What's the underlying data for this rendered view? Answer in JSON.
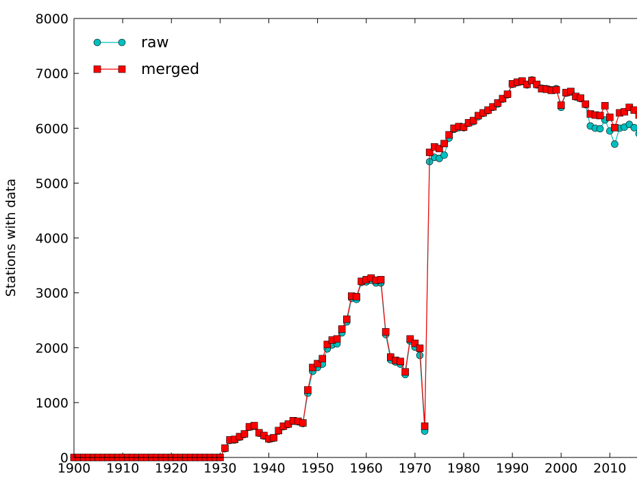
{
  "chart_data": {
    "type": "line",
    "y_label": "Stations with data",
    "x": [
      1900,
      1901,
      1902,
      1903,
      1904,
      1905,
      1906,
      1907,
      1908,
      1909,
      1910,
      1911,
      1912,
      1913,
      1914,
      1915,
      1916,
      1917,
      1918,
      1919,
      1920,
      1921,
      1922,
      1923,
      1924,
      1925,
      1926,
      1927,
      1928,
      1929,
      1930,
      1931,
      1932,
      1933,
      1934,
      1935,
      1936,
      1937,
      1938,
      1939,
      1940,
      1941,
      1942,
      1943,
      1944,
      1945,
      1946,
      1947,
      1948,
      1949,
      1950,
      1951,
      1952,
      1953,
      1954,
      1955,
      1956,
      1957,
      1958,
      1959,
      1960,
      1961,
      1962,
      1963,
      1964,
      1965,
      1966,
      1967,
      1968,
      1969,
      1970,
      1971,
      1972,
      1973,
      1974,
      1975,
      1976,
      1977,
      1978,
      1979,
      1980,
      1981,
      1982,
      1983,
      1984,
      1985,
      1986,
      1987,
      1988,
      1989,
      1990,
      1991,
      1992,
      1993,
      1994,
      1995,
      1996,
      1997,
      1998,
      1999,
      2000,
      2001,
      2002,
      2003,
      2004,
      2005,
      2006,
      2007,
      2008,
      2009,
      2010,
      2011,
      2012,
      2013,
      2014,
      2015,
      2016
    ],
    "series": [
      {
        "name": "raw",
        "color": "#00bfbf",
        "marker": "circle",
        "values": [
          0,
          0,
          0,
          0,
          0,
          0,
          0,
          0,
          0,
          0,
          0,
          0,
          0,
          0,
          0,
          0,
          0,
          0,
          0,
          0,
          0,
          0,
          0,
          0,
          0,
          0,
          0,
          0,
          0,
          0,
          0,
          160,
          310,
          320,
          370,
          420,
          550,
          570,
          440,
          390,
          330,
          350,
          480,
          560,
          600,
          660,
          650,
          620,
          1170,
          1570,
          1640,
          1700,
          1980,
          2050,
          2070,
          2270,
          2470,
          2900,
          2880,
          3190,
          3200,
          3230,
          3180,
          3180,
          2240,
          1780,
          1740,
          1700,
          1510,
          2120,
          2010,
          1860,
          480,
          5390,
          5470,
          5450,
          5510,
          5820,
          5980,
          6010,
          6010,
          6090,
          6120,
          6210,
          6270,
          6320,
          6380,
          6440,
          6530,
          6610,
          6800,
          6830,
          6850,
          6790,
          6880,
          6790,
          6730,
          6720,
          6700,
          6720,
          6380,
          6640,
          6660,
          6570,
          6540,
          6430,
          6040,
          6000,
          5990,
          6150,
          5950,
          5710,
          6000,
          6020,
          6070,
          6010,
          5900
        ]
      },
      {
        "name": "merged",
        "color": "#ff0000",
        "marker": "square",
        "values": [
          0,
          0,
          0,
          0,
          0,
          0,
          0,
          0,
          0,
          0,
          0,
          0,
          0,
          0,
          0,
          0,
          0,
          0,
          0,
          0,
          0,
          0,
          0,
          0,
          0,
          0,
          0,
          0,
          0,
          0,
          0,
          170,
          320,
          330,
          380,
          430,
          560,
          580,
          450,
          400,
          340,
          360,
          490,
          570,
          610,
          670,
          660,
          630,
          1230,
          1640,
          1710,
          1800,
          2060,
          2140,
          2160,
          2340,
          2520,
          2940,
          2930,
          3210,
          3240,
          3270,
          3230,
          3240,
          2290,
          1830,
          1770,
          1750,
          1560,
          2160,
          2080,
          1990,
          570,
          5560,
          5660,
          5630,
          5720,
          5880,
          6000,
          6030,
          6020,
          6100,
          6140,
          6230,
          6280,
          6330,
          6390,
          6460,
          6540,
          6620,
          6810,
          6840,
          6860,
          6800,
          6870,
          6800,
          6720,
          6710,
          6690,
          6700,
          6420,
          6650,
          6670,
          6580,
          6550,
          6440,
          6260,
          6240,
          6230,
          6410,
          6200,
          6010,
          6280,
          6300,
          6380,
          6330,
          6240
        ]
      }
    ],
    "xlim": [
      1900,
      2016
    ],
    "xticks": [
      1900,
      1910,
      1920,
      1930,
      1940,
      1950,
      1960,
      1970,
      1980,
      1990,
      2000,
      2010
    ],
    "ylim": [
      0,
      8000
    ],
    "yticks": [
      0,
      1000,
      2000,
      3000,
      4000,
      5000,
      6000,
      7000,
      8000
    ],
    "legend": "upper left"
  }
}
